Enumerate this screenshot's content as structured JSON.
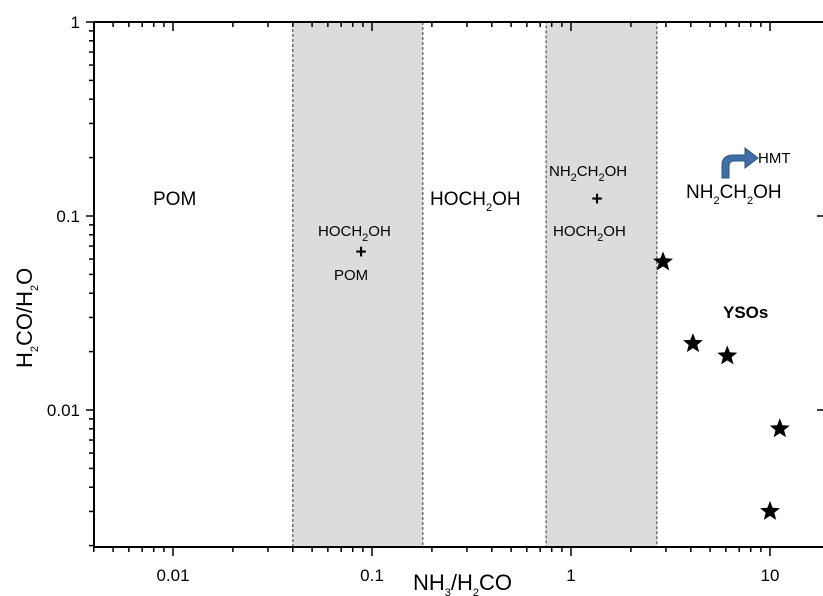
{
  "chart_data": {
    "type": "scatter",
    "title": "",
    "xlabel": {
      "a": "NH",
      "s1": "3",
      "b": "/H",
      "s2": "2",
      "c": "CO"
    },
    "ylabel": {
      "a": "H",
      "s1": "2",
      "b": "CO/H",
      "s2": "2",
      "c": "O"
    },
    "x_scale": "log",
    "y_scale": "log",
    "xlim": [
      0.004,
      15
    ],
    "ylim": [
      0.002,
      1
    ],
    "x_tick_labels": [
      "0.01",
      "0.1",
      "1",
      "10"
    ],
    "y_tick_labels": [
      "0.01",
      "0.1",
      "1"
    ],
    "grid": false,
    "shaded_bands": [
      {
        "x_range": [
          0.04,
          0.18
        ]
      },
      {
        "x_range": [
          0.75,
          2.7
        ]
      }
    ],
    "regions": {
      "pom": "POM",
      "band1": {
        "a": "HOCH",
        "s": "2",
        "b": "OH",
        "plus": "+",
        "c": "POM"
      },
      "middle": {
        "a": "HOCH",
        "s": "2",
        "b": "OH"
      },
      "band2": {
        "a": "NH",
        "s1": "2",
        "b": "CH",
        "s2": "2",
        "c": "OH",
        "plus": "+",
        "d": "HOCH",
        "s3": "2",
        "e": "OH"
      },
      "right": {
        "a": "NH",
        "s1": "2",
        "b": "CH",
        "s2": "2",
        "c": "OH"
      },
      "hmt": "HMT",
      "ysos": "YSOs"
    },
    "series": [
      {
        "marker": "star",
        "color": "#000000",
        "points": [
          {
            "x": 2.9,
            "y": 0.058
          },
          {
            "x": 4.1,
            "y": 0.022
          },
          {
            "x": 6.1,
            "y": 0.019
          },
          {
            "x": 11.2,
            "y": 0.008
          },
          {
            "x": 10.0,
            "y": 0.003
          }
        ]
      }
    ],
    "colors": {
      "band_fill": "#dcdcdc",
      "arrow": "#3f6fa6",
      "marker": "#000000"
    }
  }
}
